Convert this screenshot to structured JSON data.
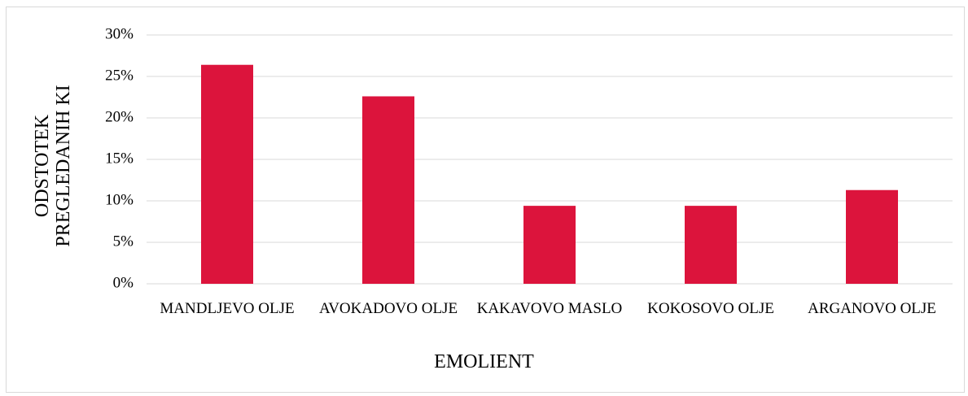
{
  "chart_data": {
    "type": "bar",
    "categories": [
      "MANDLJEVO OLJE",
      "AVOKADOVO OLJE",
      "KAKAVOVO MASLO",
      "KOKOSOVO OLJE",
      "ARGANOVO OLJE"
    ],
    "values": [
      26.4,
      22.6,
      9.4,
      9.4,
      11.3
    ],
    "color": "#dc143c",
    "x_label": "EMOLIENT",
    "y_label": "ODSTOTEK PREGLEDANIH KI",
    "ylim": [
      0,
      30
    ],
    "yticks": [
      {
        "value": 0,
        "label": "0%"
      },
      {
        "value": 5,
        "label": "5%"
      },
      {
        "value": 10,
        "label": "10%"
      },
      {
        "value": 15,
        "label": "15%"
      },
      {
        "value": 20,
        "label": "20%"
      },
      {
        "value": 25,
        "label": "25%"
      },
      {
        "value": 30,
        "label": "30%"
      }
    ],
    "grid": true
  }
}
